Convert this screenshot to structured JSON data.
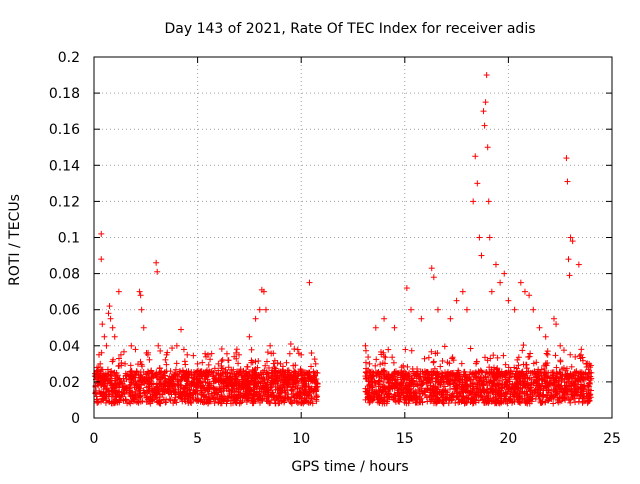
{
  "chart_data": {
    "type": "scatter",
    "title": "Day 143 of 2021, Rate Of TEC Index for receiver adis",
    "xlabel": "GPS time / hours",
    "ylabel": "ROTI / TECUs",
    "xlim": [
      0,
      25
    ],
    "ylim": [
      0,
      0.2
    ],
    "xticks": [
      "0",
      "5",
      "10",
      "15",
      "20",
      "25"
    ],
    "yticks": [
      "0",
      "0.02",
      "0.04",
      "0.06",
      "0.08",
      "0.1",
      "0.12",
      "0.14",
      "0.16",
      "0.18",
      "0.2"
    ],
    "grid": true,
    "marker": "+",
    "color": "#ff0000",
    "series": [
      {
        "points": [
          [
            0.1,
            0.015
          ],
          [
            0.2,
            0.022
          ],
          [
            0.3,
            0.03
          ],
          [
            0.35,
            0.102
          ],
          [
            0.35,
            0.088
          ],
          [
            0.4,
            0.052
          ],
          [
            0.5,
            0.045
          ],
          [
            0.6,
            0.04
          ],
          [
            0.7,
            0.058
          ],
          [
            0.75,
            0.062
          ],
          [
            0.8,
            0.055
          ],
          [
            0.9,
            0.05
          ],
          [
            1.0,
            0.045
          ],
          [
            1.2,
            0.07
          ],
          [
            1.3,
            0.035
          ],
          [
            1.5,
            0.03
          ],
          [
            1.8,
            0.04
          ],
          [
            2.0,
            0.038
          ],
          [
            2.2,
            0.07
          ],
          [
            2.25,
            0.068
          ],
          [
            2.3,
            0.06
          ],
          [
            2.4,
            0.05
          ],
          [
            2.6,
            0.035
          ],
          [
            3.0,
            0.086
          ],
          [
            3.05,
            0.081
          ],
          [
            3.1,
            0.04
          ],
          [
            3.5,
            0.035
          ],
          [
            4.0,
            0.04
          ],
          [
            4.2,
            0.049
          ],
          [
            4.5,
            0.035
          ],
          [
            5.0,
            0.03
          ],
          [
            5.5,
            0.035
          ],
          [
            6.0,
            0.03
          ],
          [
            6.5,
            0.032
          ],
          [
            7.0,
            0.035
          ],
          [
            7.5,
            0.045
          ],
          [
            7.8,
            0.055
          ],
          [
            8.0,
            0.06
          ],
          [
            8.1,
            0.071
          ],
          [
            8.2,
            0.07
          ],
          [
            8.3,
            0.06
          ],
          [
            8.5,
            0.04
          ],
          [
            9.0,
            0.03
          ],
          [
            9.5,
            0.041
          ],
          [
            10.0,
            0.035
          ],
          [
            10.4,
            0.075
          ],
          [
            10.5,
            0.036
          ],
          [
            10.7,
            0.03
          ],
          [
            13.1,
            0.04
          ],
          [
            13.3,
            0.03
          ],
          [
            13.6,
            0.05
          ],
          [
            14.0,
            0.055
          ],
          [
            14.5,
            0.05
          ],
          [
            15.1,
            0.072
          ],
          [
            15.3,
            0.06
          ],
          [
            15.8,
            0.055
          ],
          [
            16.3,
            0.083
          ],
          [
            16.4,
            0.078
          ],
          [
            16.6,
            0.06
          ],
          [
            17.2,
            0.055
          ],
          [
            17.5,
            0.065
          ],
          [
            17.8,
            0.07
          ],
          [
            18.0,
            0.06
          ],
          [
            18.3,
            0.12
          ],
          [
            18.4,
            0.145
          ],
          [
            18.5,
            0.13
          ],
          [
            18.6,
            0.1
          ],
          [
            18.7,
            0.09
          ],
          [
            18.8,
            0.17
          ],
          [
            18.85,
            0.162
          ],
          [
            18.9,
            0.175
          ],
          [
            18.95,
            0.19
          ],
          [
            19.0,
            0.15
          ],
          [
            19.05,
            0.12
          ],
          [
            19.1,
            0.1
          ],
          [
            19.2,
            0.07
          ],
          [
            19.4,
            0.085
          ],
          [
            19.6,
            0.075
          ],
          [
            19.8,
            0.08
          ],
          [
            20.0,
            0.065
          ],
          [
            20.3,
            0.06
          ],
          [
            20.6,
            0.075
          ],
          [
            20.8,
            0.07
          ],
          [
            21.0,
            0.068
          ],
          [
            21.2,
            0.06
          ],
          [
            21.5,
            0.05
          ],
          [
            21.8,
            0.045
          ],
          [
            22.2,
            0.055
          ],
          [
            22.3,
            0.052
          ],
          [
            22.5,
            0.04
          ],
          [
            22.8,
            0.144
          ],
          [
            22.85,
            0.131
          ],
          [
            22.9,
            0.088
          ],
          [
            22.95,
            0.079
          ],
          [
            23.0,
            0.1
          ],
          [
            23.1,
            0.098
          ],
          [
            23.4,
            0.085
          ],
          [
            23.5,
            0.035
          ],
          [
            23.8,
            0.03
          ],
          [
            24.0,
            0.025
          ]
        ]
      }
    ]
  }
}
